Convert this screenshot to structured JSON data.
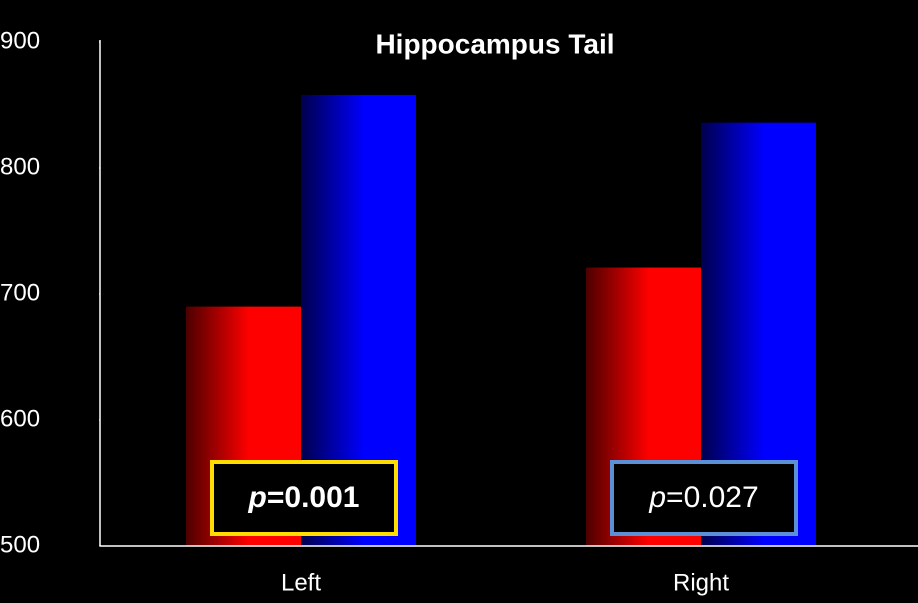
{
  "chart_data": {
    "type": "bar",
    "title": "Hippocampus Tail",
    "categories": [
      "Left",
      "Right"
    ],
    "series": [
      {
        "color": "#ff0000",
        "values": [
          690,
          721
        ]
      },
      {
        "color": "#0000ff",
        "values": [
          858,
          836
        ]
      }
    ],
    "ylim": [
      500,
      900
    ],
    "yticks": [
      500,
      600,
      700,
      800,
      900
    ],
    "annotations": [
      {
        "symbol": "p",
        "text": "=0.001",
        "color": "#ffdd00",
        "bold": true
      },
      {
        "symbol": "p",
        "text": "=0.027",
        "color": "#5b8fd6",
        "bold": false
      }
    ]
  }
}
